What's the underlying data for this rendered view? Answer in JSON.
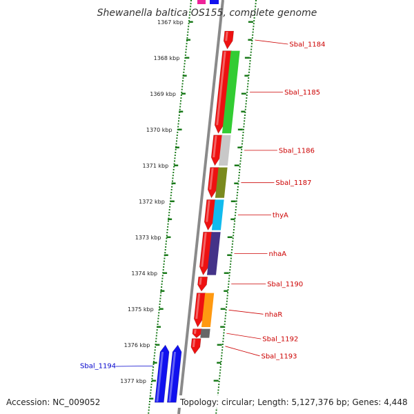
{
  "title": "Shewanella baltica OS155, complete genome",
  "footer": {
    "accession": "Accession: NC_009052",
    "summary": "Topology: circular; Length: 5,127,376 bp; Genes: 4,448"
  },
  "colors": {
    "forward_gene": "#ee1111",
    "reverse_gene": "#1111ee",
    "tick": "#1a7a1a",
    "backbone": "#8a8a8a",
    "label_forward": "#cc0000",
    "label_reverse": "#0000cc"
  },
  "kbp_labels": [
    "1367 kbp",
    "1368 kbp",
    "1369 kbp",
    "1370 kbp",
    "1371 kbp",
    "1372 kbp",
    "1373 kbp",
    "1374 kbp",
    "1375 kbp",
    "1376 kbp",
    "1377 kbp"
  ],
  "genes": [
    {
      "label": "Sbal_1184",
      "start_kbp": 1367.25,
      "end_kbp": 1367.75,
      "strand": "forward",
      "cog_color": null
    },
    {
      "label": "Sbal_1185",
      "start_kbp": 1367.8,
      "end_kbp": 1370.1,
      "strand": "forward",
      "cog_color": "#33cc33"
    },
    {
      "label": "Sbal_1186",
      "start_kbp": 1370.15,
      "end_kbp": 1371.0,
      "strand": "forward",
      "cog_color": "#c8c8c8"
    },
    {
      "label": "Sbal_1187",
      "start_kbp": 1371.05,
      "end_kbp": 1371.9,
      "strand": "forward",
      "cog_color": "#7a8a1e"
    },
    {
      "label": "thyA",
      "start_kbp": 1371.95,
      "end_kbp": 1372.8,
      "strand": "forward",
      "cog_color": "#11bbee"
    },
    {
      "label": "nhaA",
      "start_kbp": 1372.85,
      "end_kbp": 1374.05,
      "strand": "forward",
      "cog_color": "#443388"
    },
    {
      "label": "Sbal_1190",
      "start_kbp": 1374.1,
      "end_kbp": 1374.5,
      "strand": "forward",
      "cog_color": null
    },
    {
      "label": "nhaR",
      "start_kbp": 1374.55,
      "end_kbp": 1375.5,
      "strand": "forward",
      "cog_color": "#ff9911"
    },
    {
      "label": "Sbal_1192",
      "start_kbp": 1375.55,
      "end_kbp": 1375.8,
      "strand": "forward",
      "cog_color": "#666666"
    },
    {
      "label": "Sbal_1193",
      "start_kbp": 1375.82,
      "end_kbp": 1376.25,
      "strand": "forward",
      "cog_color": null
    },
    {
      "label": "Sbal_1194",
      "start_kbp": 1376.0,
      "end_kbp": 1377.6,
      "strand": "reverse",
      "cog_color": null
    }
  ]
}
